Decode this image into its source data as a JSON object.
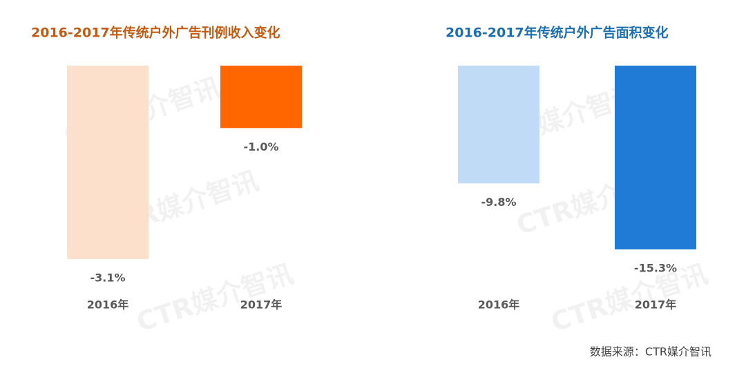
{
  "chart_data": [
    {
      "type": "bar",
      "title": "2016-2017年传统户外广告刊例收入变化",
      "title_color": "#c55a11",
      "categories": [
        "2016年",
        "2017年"
      ],
      "values": [
        -3.1,
        -1.0
      ],
      "value_labels": [
        "-3.1%",
        "-1.0%"
      ],
      "colors": [
        "#fde0cc",
        "#ff6600"
      ],
      "ylim": [
        -3.1,
        0
      ]
    },
    {
      "type": "bar",
      "title": "2016-2017年传统户外广告面积变化",
      "title_color": "#1a6fb3",
      "categories": [
        "2016年",
        "2017年"
      ],
      "values": [
        -9.8,
        -15.3
      ],
      "value_labels": [
        "-9.8%",
        "-15.3%"
      ],
      "colors": [
        "#c0dbf5",
        "#1f7bd6"
      ],
      "ylim": [
        -15.3,
        0
      ]
    }
  ],
  "source": "数据来源：CTR媒介智讯",
  "watermark": "CTR媒介智讯"
}
